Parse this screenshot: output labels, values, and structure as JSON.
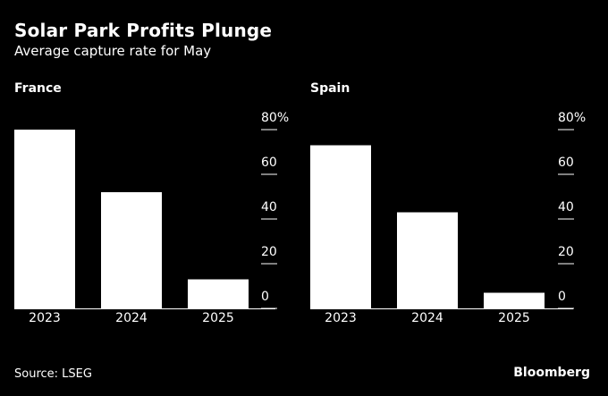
{
  "header": {
    "title": "Solar Park Profits Plunge",
    "subtitle": "Average capture rate for May"
  },
  "footer": {
    "source": "Source: LSEG",
    "brand": "Bloomberg"
  },
  "chart_data": [
    {
      "type": "bar",
      "title": "France",
      "categories": [
        "2023",
        "2024",
        "2025"
      ],
      "values": [
        80,
        52,
        13
      ],
      "ylim": [
        0,
        80
      ],
      "yticks": [
        0,
        20,
        40,
        60,
        80
      ],
      "ytick_labels": [
        "0",
        "20",
        "40",
        "60",
        "80%"
      ],
      "y_axis_side": "right",
      "grid": false,
      "bar_color": "#ffffff"
    },
    {
      "type": "bar",
      "title": "Spain",
      "categories": [
        "2023",
        "2024",
        "2025"
      ],
      "values": [
        73,
        43,
        7
      ],
      "ylim": [
        0,
        80
      ],
      "yticks": [
        0,
        20,
        40,
        60,
        80
      ],
      "ytick_labels": [
        "0",
        "20",
        "40",
        "60",
        "80%"
      ],
      "y_axis_side": "right",
      "grid": false,
      "bar_color": "#ffffff"
    }
  ]
}
